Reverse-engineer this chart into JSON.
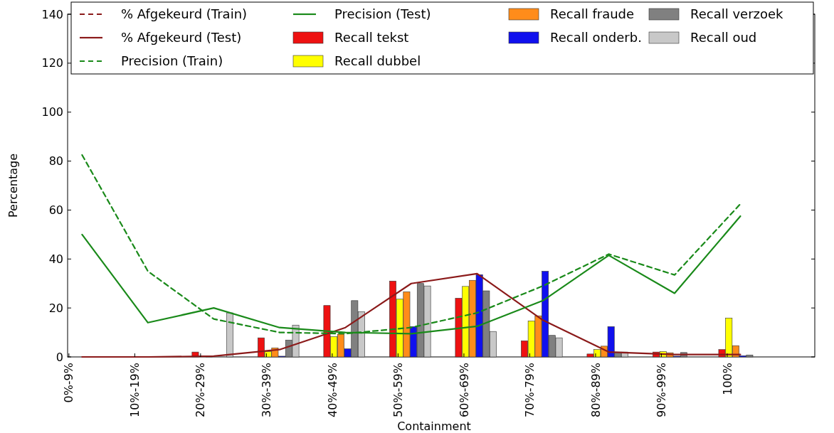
{
  "chart_data": {
    "type": "bar",
    "xlabel": "Containment",
    "ylabel": "Percentage",
    "categories": [
      "0%-9%",
      "10%-19%",
      "20%-29%",
      "30%-39%",
      "40%-49%",
      "50%-59%",
      "60%-69%",
      "70%-79%",
      "80%-89%",
      "90%-99%",
      "100%"
    ],
    "ylim": [
      0,
      140
    ],
    "yticks": [
      0,
      20,
      40,
      60,
      80,
      100,
      120,
      140
    ],
    "grid": false,
    "legend": "top",
    "series": [
      {
        "name": "% Afgekeurd (Train)",
        "type": "line",
        "line_style": "dashed",
        "color": "#8b1a1a",
        "values": [
          null,
          null,
          null,
          null,
          null,
          null,
          null,
          null,
          null,
          null,
          null
        ]
      },
      {
        "name": "% Afgekeurd (Test)",
        "type": "line",
        "line_style": "solid",
        "color": "#8b1a1a",
        "values": [
          0,
          0,
          0.3,
          3,
          12,
          30,
          34,
          15,
          2,
          1,
          1
        ]
      },
      {
        "name": "Precision (Train)",
        "type": "line",
        "line_style": "dashed",
        "color": "#1a8a1a",
        "values": [
          82.5,
          35,
          15.5,
          10,
          9.5,
          12,
          18,
          29,
          42,
          33.5,
          62.5
        ]
      },
      {
        "name": "Precision (Test)",
        "type": "line",
        "line_style": "solid",
        "color": "#1a8a1a",
        "values": [
          50,
          14,
          20,
          12,
          10,
          9.5,
          12.5,
          23,
          41.5,
          26,
          57.5
        ]
      },
      {
        "name": "Recall tekst",
        "color": "#ee1111",
        "values": [
          0,
          0,
          2,
          7.8,
          21,
          31,
          24,
          6.6,
          1.2,
          2,
          3
        ]
      },
      {
        "name": "Recall dubbel",
        "color": "#ffff00",
        "values": [
          0,
          0,
          0,
          2.2,
          8.3,
          23.6,
          28.8,
          14.7,
          3,
          2.2,
          15.9
        ]
      },
      {
        "name": "Recall fraude",
        "color": "#ff8c1a",
        "values": [
          0,
          0,
          0.3,
          3.7,
          9.3,
          26.6,
          31.3,
          16.8,
          4.4,
          1.7,
          4.6
        ]
      },
      {
        "name": "Recall onderb.",
        "color": "#1010ee",
        "values": [
          0,
          0,
          0,
          0.3,
          3.3,
          12.4,
          33.6,
          35,
          12.4,
          0.3,
          0.5
        ]
      },
      {
        "name": "Recall verzoek",
        "color": "#808080",
        "values": [
          0,
          0,
          0,
          6.9,
          23,
          30,
          27,
          8.8,
          2,
          1.8,
          0.8
        ]
      },
      {
        "name": "Recall oud",
        "color": "#c8c8c8",
        "values": [
          0,
          0,
          18,
          13,
          18.5,
          29,
          10.4,
          7.8,
          2,
          0,
          0
        ]
      }
    ]
  }
}
